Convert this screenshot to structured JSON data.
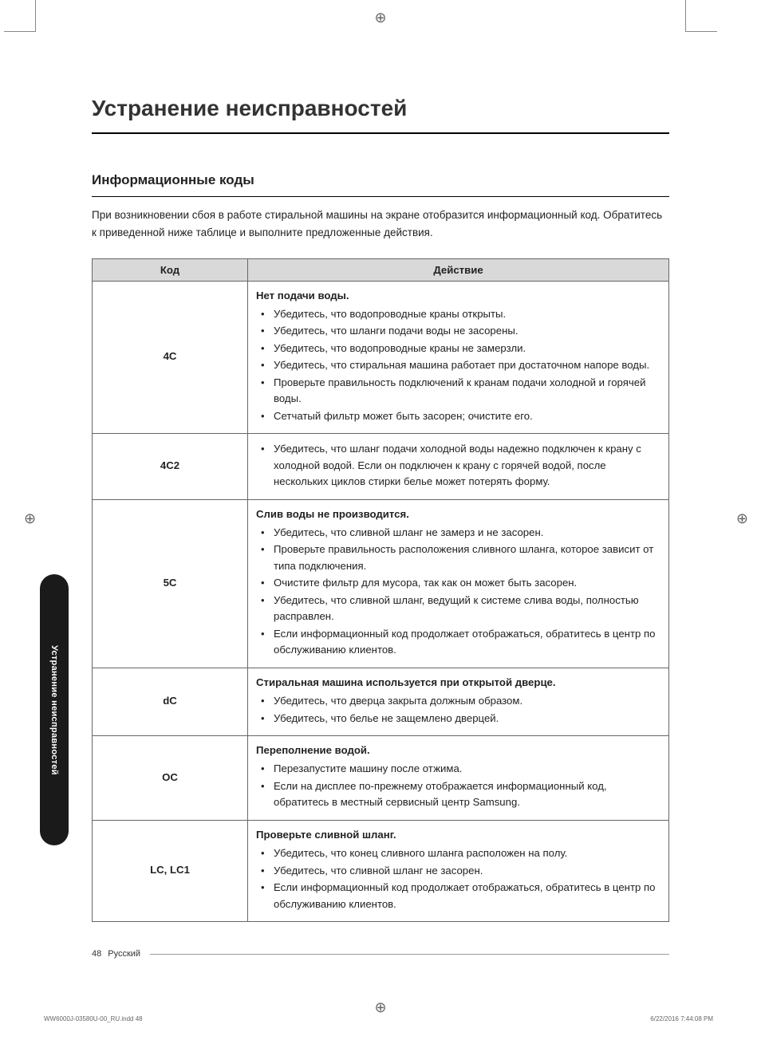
{
  "title": "Устранение неисправностей",
  "section": "Информационные коды",
  "intro": "При возникновении сбоя в работе стиральной машины на экране отобразится информационный код. Обратитесь к приведенной ниже таблице и выполните предложенные действия.",
  "table": {
    "headers": {
      "code": "Код",
      "action": "Действие"
    },
    "rows": [
      {
        "code": "4C",
        "heading": "Нет подачи воды.",
        "items": [
          "Убедитесь, что водопроводные краны открыты.",
          "Убедитесь, что шланги подачи воды не засорены.",
          "Убедитесь, что водопроводные краны не замерзли.",
          "Убедитесь, что стиральная машина работает при достаточном напоре воды.",
          "Проверьте правильность подключений к кранам подачи холодной и горячей воды.",
          "Сетчатый фильтр может быть засорен; очистите его."
        ]
      },
      {
        "code": "4C2",
        "heading": "",
        "items": [
          "Убедитесь, что шланг подачи холодной воды надежно подключен к крану с холодной водой. Если он подключен к крану с горячей водой, после нескольких циклов стирки белье может потерять форму."
        ]
      },
      {
        "code": "5C",
        "heading": "Слив воды не производится.",
        "items": [
          "Убедитесь, что сливной шланг не замерз и не засорен.",
          "Проверьте правильность расположения сливного шланга, которое зависит от типа подключения.",
          "Очистите фильтр для мусора, так как он может быть засорен.",
          "Убедитесь, что сливной шланг, ведущий к системе слива воды, полностью расправлен.",
          "Если информационный код продолжает отображаться, обратитесь в центр по обслуживанию клиентов."
        ]
      },
      {
        "code": "dC",
        "heading": "Стиральная машина используется при открытой дверце.",
        "items": [
          "Убедитесь, что дверца закрыта должным образом.",
          "Убедитесь, что белье не защемлено дверцей."
        ]
      },
      {
        "code": "OC",
        "heading": "Переполнение водой.",
        "items": [
          "Перезапустите машину после отжима.",
          "Если на дисплее по-прежнему отображается информационный код, обратитесь в местный сервисный центр Samsung."
        ]
      },
      {
        "code": "LC, LC1",
        "heading": "Проверьте сливной шланг.",
        "items": [
          "Убедитесь, что конец сливного шланга расположен на полу.",
          "Убедитесь, что сливной шланг не засорен.",
          "Если информационный код продолжает отображаться, обратитесь в центр по обслуживанию клиентов."
        ]
      }
    ]
  },
  "sideTab": "Устранение неисправностей",
  "footer": {
    "page": "48",
    "lang": "Русский"
  },
  "indd": {
    "left": "WW6000J-03580U-00_RU.indd   48",
    "right": "6/22/2016   7:44:08 PM"
  },
  "registration": "⊕"
}
